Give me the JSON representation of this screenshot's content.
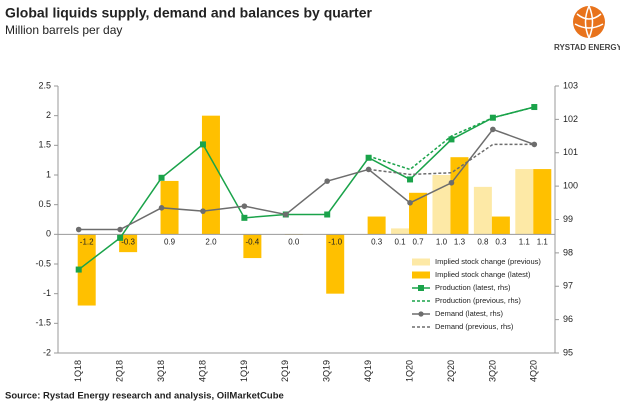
{
  "chart_data": {
    "type": "bar",
    "title": "Global liquids supply, demand and balances by quarter",
    "subtitle": "Million barrels per day",
    "source": "Source: Rystad Energy research and analysis, OilMarketCube",
    "logo_text": "RYSTAD ENERGY",
    "categories": [
      "1Q18",
      "2Q18",
      "3Q18",
      "4Q18",
      "1Q19",
      "2Q19",
      "3Q19",
      "4Q19",
      "1Q20",
      "2Q20",
      "3Q20",
      "4Q20"
    ],
    "series": [
      {
        "name": "Implied stock change (previous)",
        "type": "bar",
        "color": "#fde9a6",
        "values": [
          null,
          null,
          null,
          null,
          null,
          null,
          null,
          null,
          0.1,
          1.0,
          0.8,
          1.1
        ],
        "value_labels": [
          null,
          null,
          null,
          null,
          null,
          null,
          null,
          null,
          "0.1",
          "1.0",
          "0.8",
          "1.1"
        ]
      },
      {
        "name": "Implied stock change (latest)",
        "type": "bar",
        "color": "#ffc000",
        "values": [
          -1.2,
          -0.3,
          0.9,
          2.0,
          -0.4,
          0.0,
          -1.0,
          0.3,
          0.7,
          1.3,
          0.3,
          1.1
        ],
        "value_labels": [
          "-1.2",
          "-0.3",
          "0.9",
          "2.0",
          "-0.4",
          "0.0",
          "-1.0",
          "0.3",
          "0.7",
          "1.3",
          "0.3",
          "1.1"
        ]
      },
      {
        "name": "Production (latest, rhs)",
        "type": "line",
        "axis": "y2",
        "color": "#1aa34a",
        "dashed": false,
        "marker": "square",
        "values": [
          97.5,
          98.45,
          100.25,
          101.25,
          99.05,
          99.15,
          99.15,
          100.85,
          100.2,
          101.4,
          102.05,
          102.37
        ]
      },
      {
        "name": "Production (previous, rhs)",
        "type": "line",
        "axis": "y2",
        "color": "#1aa34a",
        "dashed": true,
        "marker": null,
        "values": [
          null,
          null,
          null,
          null,
          null,
          null,
          null,
          100.9,
          100.5,
          101.5,
          102.05,
          102.37
        ]
      },
      {
        "name": "Demand (latest, rhs)",
        "type": "line",
        "axis": "y2",
        "color": "#6d6d6d",
        "dashed": false,
        "marker": "circle",
        "values": [
          98.7,
          98.7,
          99.35,
          99.25,
          99.4,
          99.15,
          100.15,
          100.5,
          99.5,
          100.1,
          101.7,
          101.25
        ]
      },
      {
        "name": "Demand (previous, rhs)",
        "type": "line",
        "axis": "y2",
        "color": "#6d6d6d",
        "dashed": true,
        "marker": null,
        "values": [
          null,
          null,
          null,
          null,
          null,
          null,
          null,
          100.5,
          100.35,
          100.4,
          101.25,
          101.25
        ]
      }
    ],
    "ylim": [
      -2,
      2.5
    ],
    "yticks": [
      -2,
      -1.5,
      -1,
      -0.5,
      0,
      0.5,
      1,
      1.5,
      2,
      2.5
    ],
    "y2lim": [
      95,
      103
    ],
    "y2ticks": [
      95,
      96,
      97,
      98,
      99,
      100,
      101,
      102,
      103
    ],
    "legend": "lower-right"
  }
}
